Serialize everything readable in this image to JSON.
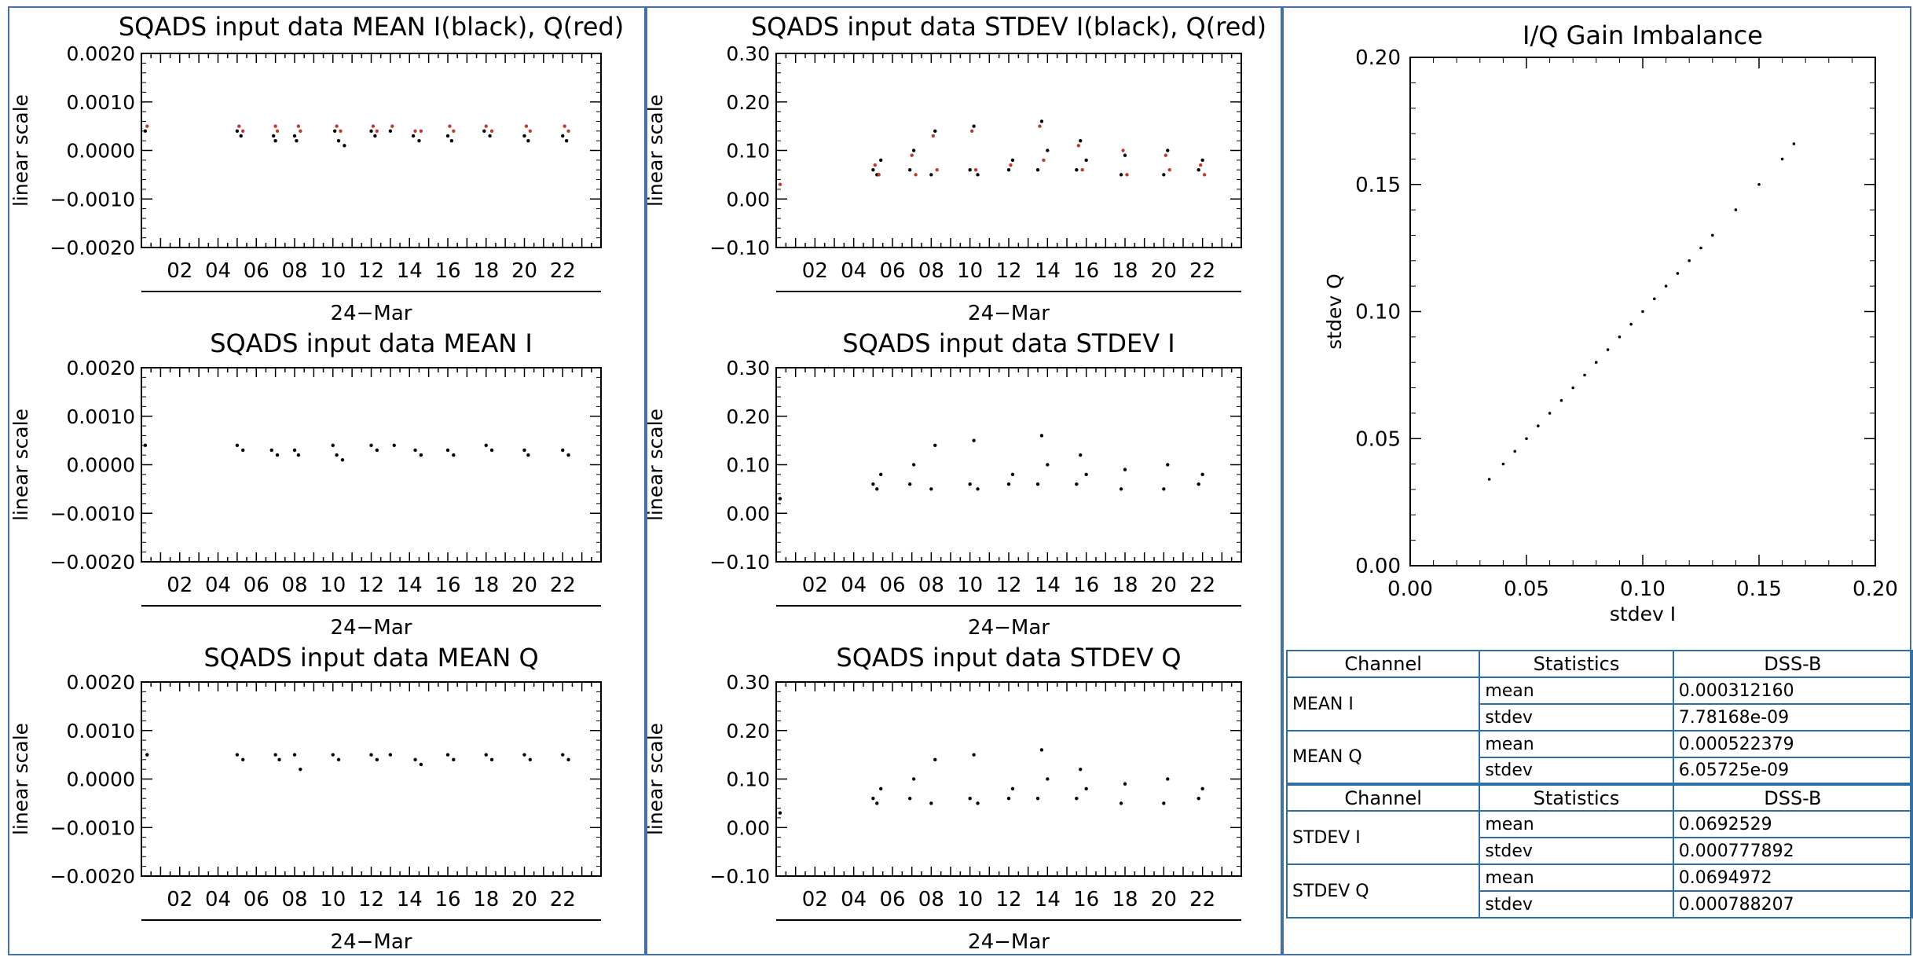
{
  "colors": {
    "frame": "#4472a8",
    "i_series": "#000000",
    "q_series": "#c0392b",
    "table_border": "#2f6fa8"
  },
  "time_panels": [
    {
      "id": "mean-iq",
      "title": "SQADS input data MEAN I(black), Q(red)",
      "ylabel": "linear scale",
      "xlabel": "24−Mar",
      "yticks": [
        "0.0020",
        "0.0010",
        "0.0000",
        "−0.0010",
        "−0.0020"
      ]
    },
    {
      "id": "stdev-iq",
      "title": "SQADS input data STDEV I(black), Q(red)",
      "ylabel": "linear scale",
      "xlabel": "24−Mar",
      "yticks": [
        "0.30",
        "0.20",
        "0.10",
        "0.00",
        "−0.10"
      ]
    },
    {
      "id": "mean-i",
      "title": "SQADS input data MEAN I",
      "ylabel": "linear scale",
      "xlabel": "24−Mar",
      "yticks": [
        "0.0020",
        "0.0010",
        "0.0000",
        "−0.0010",
        "−0.0020"
      ]
    },
    {
      "id": "stdev-i",
      "title": "SQADS input data STDEV I",
      "ylabel": "linear scale",
      "xlabel": "24−Mar",
      "yticks": [
        "0.30",
        "0.20",
        "0.10",
        "0.00",
        "−0.10"
      ]
    },
    {
      "id": "mean-q",
      "title": "SQADS input data MEAN Q",
      "ylabel": "linear scale",
      "xlabel": "24−Mar",
      "yticks": [
        "0.0020",
        "0.0010",
        "0.0000",
        "−0.0010",
        "−0.0020"
      ]
    },
    {
      "id": "stdev-q",
      "title": "SQADS input data STDEV Q",
      "ylabel": "linear scale",
      "xlabel": "24−Mar",
      "yticks": [
        "0.30",
        "0.20",
        "0.10",
        "0.00",
        "−0.10"
      ]
    }
  ],
  "xticks": [
    "02",
    "04",
    "06",
    "08",
    "10",
    "12",
    "14",
    "16",
    "18",
    "20",
    "22"
  ],
  "scatter": {
    "title": "I/Q Gain Imbalance",
    "xlabel": "stdev I",
    "ylabel": "stdev Q",
    "xticks": [
      "0.00",
      "0.05",
      "0.10",
      "0.15",
      "0.20"
    ],
    "yticks": [
      "0.20",
      "0.15",
      "0.10",
      "0.05",
      "0.00"
    ]
  },
  "chart_data": [
    {
      "type": "scatter",
      "title": "SQADS input data MEAN I(black), Q(red)",
      "ylabel": "linear scale",
      "xlabel": "24−Mar",
      "xlim": [
        0,
        24
      ],
      "ylim": [
        -0.002,
        0.002
      ],
      "grid": false,
      "series": [
        {
          "color": "#000000",
          "x": [
            0.2,
            5,
            5.2,
            6.9,
            7,
            8,
            8.1,
            10.1,
            10.3,
            10.6,
            12,
            12.2,
            13,
            14.2,
            14.5,
            16,
            16.2,
            17.9,
            18.2,
            20,
            20.2,
            22,
            22.2
          ],
          "y": [
            0.0004,
            0.0004,
            0.0003,
            0.0003,
            0.0002,
            0.0003,
            0.0002,
            0.0004,
            0.0002,
            0.0001,
            0.0004,
            0.0003,
            0.0004,
            0.0003,
            0.0002,
            0.0003,
            0.0002,
            0.0004,
            0.0003,
            0.0003,
            0.0002,
            0.0003,
            0.0002
          ]
        },
        {
          "color": "#c0392b",
          "x": [
            0.3,
            5.1,
            5.3,
            7,
            7.1,
            8.2,
            8.3,
            10.2,
            10.4,
            12.1,
            12.3,
            13.1,
            14.3,
            14.6,
            16.1,
            16.3,
            18,
            18.3,
            20.1,
            20.3,
            22.1,
            22.3
          ],
          "y": [
            0.0005,
            0.0005,
            0.0004,
            0.0005,
            0.0004,
            0.0005,
            0.0004,
            0.0005,
            0.0004,
            0.0005,
            0.0004,
            0.0005,
            0.0004,
            0.0004,
            0.0005,
            0.0004,
            0.0005,
            0.0004,
            0.0005,
            0.0004,
            0.0005,
            0.0004
          ]
        }
      ]
    },
    {
      "type": "scatter",
      "title": "SQADS input data STDEV I(black), Q(red)",
      "ylabel": "linear scale",
      "xlabel": "24−Mar",
      "xlim": [
        0,
        24
      ],
      "ylim": [
        -0.1,
        0.3
      ],
      "grid": false,
      "series": [
        {
          "color": "#000000",
          "x": [
            5,
            5.2,
            5.4,
            6.9,
            7.1,
            8,
            8.2,
            10,
            10.2,
            10.4,
            12,
            12.2,
            13.5,
            13.7,
            14,
            15.5,
            15.7,
            16,
            17.8,
            18,
            20,
            20.2,
            21.8,
            22
          ],
          "y": [
            0.06,
            0.05,
            0.08,
            0.06,
            0.1,
            0.05,
            0.14,
            0.06,
            0.15,
            0.05,
            0.06,
            0.08,
            0.06,
            0.16,
            0.1,
            0.06,
            0.12,
            0.08,
            0.05,
            0.09,
            0.05,
            0.1,
            0.06,
            0.08
          ]
        },
        {
          "color": "#c0392b",
          "x": [
            0.2,
            5.1,
            5.3,
            7,
            7.2,
            8.1,
            8.3,
            10.1,
            10.3,
            12.1,
            13.6,
            13.8,
            15.6,
            15.8,
            17.9,
            18.1,
            20.1,
            20.3,
            21.9,
            22.1
          ],
          "y": [
            0.03,
            0.07,
            0.05,
            0.09,
            0.05,
            0.13,
            0.06,
            0.14,
            0.06,
            0.07,
            0.15,
            0.08,
            0.11,
            0.06,
            0.1,
            0.05,
            0.09,
            0.06,
            0.07,
            0.05
          ]
        }
      ]
    },
    {
      "type": "scatter",
      "title": "SQADS input data MEAN I",
      "ylabel": "linear scale",
      "xlabel": "24−Mar",
      "xlim": [
        0,
        24
      ],
      "ylim": [
        -0.002,
        0.002
      ],
      "grid": false,
      "series": [
        {
          "color": "#000000",
          "x": [
            0.2,
            5,
            5.3,
            6.8,
            7.1,
            8,
            8.2,
            10,
            10.2,
            10.5,
            12,
            12.3,
            13.2,
            14.3,
            14.6,
            16,
            16.3,
            18,
            18.3,
            20,
            20.2,
            22,
            22.3
          ],
          "y": [
            0.0004,
            0.0004,
            0.0003,
            0.0003,
            0.0002,
            0.0003,
            0.0002,
            0.0004,
            0.0002,
            0.0001,
            0.0004,
            0.0003,
            0.0004,
            0.0003,
            0.0002,
            0.0003,
            0.0002,
            0.0004,
            0.0003,
            0.0003,
            0.0002,
            0.0003,
            0.0002
          ]
        }
      ]
    },
    {
      "type": "scatter",
      "title": "SQADS input data STDEV I",
      "ylabel": "linear scale",
      "xlabel": "24−Mar",
      "xlim": [
        0,
        24
      ],
      "ylim": [
        -0.1,
        0.3
      ],
      "grid": false,
      "series": [
        {
          "color": "#000000",
          "x": [
            0.2,
            5,
            5.2,
            5.4,
            6.9,
            7.1,
            8,
            8.2,
            10,
            10.2,
            10.4,
            12,
            12.2,
            13.5,
            13.7,
            14,
            15.5,
            15.7,
            16,
            17.8,
            18,
            20,
            20.2,
            21.8,
            22
          ],
          "y": [
            0.03,
            0.06,
            0.05,
            0.08,
            0.06,
            0.1,
            0.05,
            0.14,
            0.06,
            0.15,
            0.05,
            0.06,
            0.08,
            0.06,
            0.16,
            0.1,
            0.06,
            0.12,
            0.08,
            0.05,
            0.09,
            0.05,
            0.1,
            0.06,
            0.08
          ]
        }
      ]
    },
    {
      "type": "scatter",
      "title": "SQADS input data MEAN Q",
      "ylabel": "linear scale",
      "xlabel": "24−Mar",
      "xlim": [
        0,
        24
      ],
      "ylim": [
        -0.002,
        0.002
      ],
      "grid": false,
      "series": [
        {
          "color": "#000000",
          "x": [
            0.3,
            5,
            5.3,
            7,
            7.2,
            8,
            8.3,
            10,
            10.3,
            12,
            12.3,
            13,
            14.3,
            14.6,
            16,
            16.3,
            18,
            18.3,
            20,
            20.3,
            22,
            22.3
          ],
          "y": [
            0.0005,
            0.0005,
            0.0004,
            0.0005,
            0.0004,
            0.0005,
            0.0002,
            0.0005,
            0.0004,
            0.0005,
            0.0004,
            0.0005,
            0.0004,
            0.0003,
            0.0005,
            0.0004,
            0.0005,
            0.0004,
            0.0005,
            0.0004,
            0.0005,
            0.0004
          ]
        }
      ]
    },
    {
      "type": "scatter",
      "title": "SQADS input data STDEV Q",
      "ylabel": "linear scale",
      "xlabel": "24−Mar",
      "xlim": [
        0,
        24
      ],
      "ylim": [
        -0.1,
        0.3
      ],
      "grid": false,
      "series": [
        {
          "color": "#000000",
          "x": [
            0.2,
            5,
            5.2,
            5.4,
            6.9,
            7.1,
            8,
            8.2,
            10,
            10.2,
            10.4,
            12,
            12.2,
            13.5,
            13.7,
            14,
            15.5,
            15.7,
            16,
            17.8,
            18,
            20,
            20.2,
            21.8,
            22
          ],
          "y": [
            0.03,
            0.06,
            0.05,
            0.08,
            0.06,
            0.1,
            0.05,
            0.14,
            0.06,
            0.15,
            0.05,
            0.06,
            0.08,
            0.06,
            0.16,
            0.1,
            0.06,
            0.12,
            0.08,
            0.05,
            0.09,
            0.05,
            0.1,
            0.06,
            0.08
          ]
        }
      ]
    },
    {
      "type": "scatter",
      "title": "I/Q Gain Imbalance",
      "xlabel": "stdev I",
      "ylabel": "stdev Q",
      "xlim": [
        0,
        0.2
      ],
      "ylim": [
        0,
        0.2
      ],
      "grid": false,
      "series": [
        {
          "color": "#000000",
          "x": [
            0.034,
            0.04,
            0.045,
            0.05,
            0.055,
            0.06,
            0.065,
            0.07,
            0.075,
            0.08,
            0.085,
            0.09,
            0.095,
            0.1,
            0.105,
            0.11,
            0.115,
            0.12,
            0.125,
            0.13,
            0.14,
            0.15,
            0.16,
            0.165
          ],
          "y": [
            0.034,
            0.04,
            0.045,
            0.05,
            0.055,
            0.06,
            0.065,
            0.07,
            0.075,
            0.08,
            0.085,
            0.09,
            0.095,
            0.1,
            0.105,
            0.11,
            0.115,
            0.12,
            0.125,
            0.13,
            0.14,
            0.15,
            0.16,
            0.166
          ]
        }
      ]
    }
  ],
  "tables": [
    {
      "headers": [
        "Channel",
        "Statistics",
        "DSS-B"
      ],
      "rows": [
        {
          "channel": "MEAN I",
          "mean": "0.000312160",
          "stdev": "7.78168e-09"
        },
        {
          "channel": "MEAN Q",
          "mean": "0.000522379",
          "stdev": "6.05725e-09"
        }
      ]
    },
    {
      "headers": [
        "Channel",
        "Statistics",
        "DSS-B"
      ],
      "rows": [
        {
          "channel": "STDEV I",
          "mean": "0.0692529",
          "stdev": "0.000777892"
        },
        {
          "channel": "STDEV Q",
          "mean": "0.0694972",
          "stdev": "0.000788207"
        }
      ]
    }
  ],
  "stat_labels": {
    "mean": "mean",
    "stdev": "stdev"
  }
}
